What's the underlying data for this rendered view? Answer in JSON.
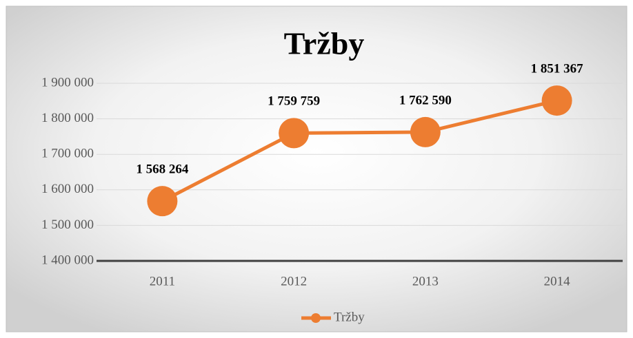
{
  "chart_data": {
    "type": "line",
    "title": "Tržby",
    "categories": [
      "2011",
      "2012",
      "2013",
      "2014"
    ],
    "series": [
      {
        "name": "Tržby",
        "color": "#ed7d31",
        "values": [
          1568264,
          1759759,
          1762590,
          1851367
        ],
        "value_labels": [
          "1 568 264",
          "1 759 759",
          "1 762 590",
          "1 851 367"
        ]
      }
    ],
    "ylim": [
      1400000,
      1900000
    ],
    "yticks": [
      {
        "value": 1400000,
        "label": "1 400 000"
      },
      {
        "value": 1500000,
        "label": "1 500 000"
      },
      {
        "value": 1600000,
        "label": "1 600 000"
      },
      {
        "value": 1700000,
        "label": "1 700 000"
      },
      {
        "value": 1800000,
        "label": "1 800 000"
      },
      {
        "value": 1900000,
        "label": "1 900 000"
      }
    ],
    "grid": true,
    "legend": "bottom"
  }
}
